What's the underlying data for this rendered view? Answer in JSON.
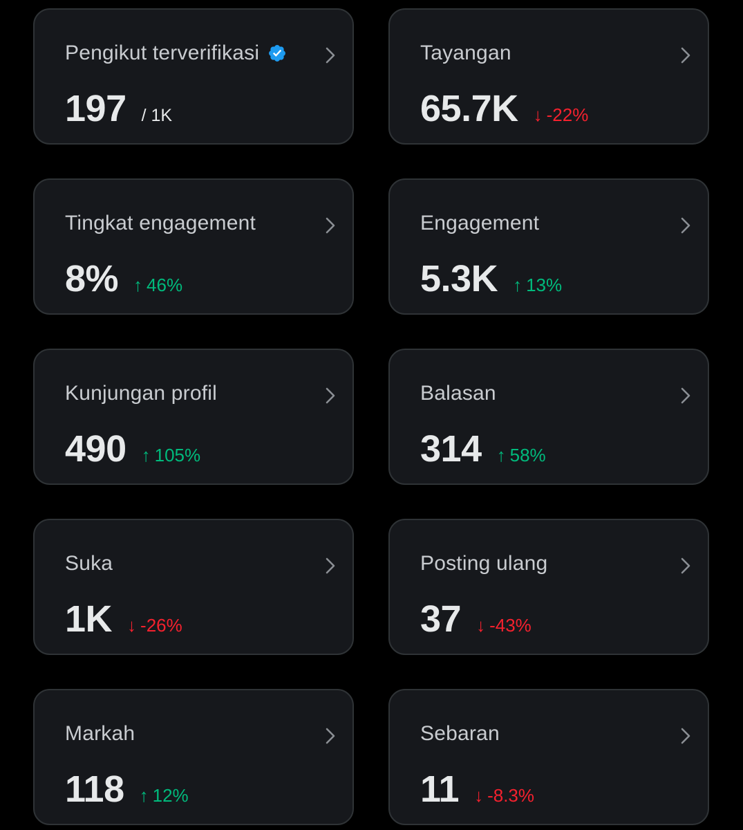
{
  "colors": {
    "background": "#000000",
    "card": "#16181c",
    "border": "#2f3336",
    "up": "#00ba7c",
    "down": "#f4212e",
    "verified": "#1d9bf0"
  },
  "cards": [
    {
      "title": "Pengikut terverifikasi",
      "value": "197",
      "suffix": "/ 1K",
      "verified_icon": "verified-badge-icon"
    },
    {
      "title": "Tayangan",
      "value": "65.7K",
      "change": {
        "arrow": "↓",
        "text": "-22%",
        "direction": "down"
      }
    },
    {
      "title": "Tingkat engagement",
      "value": "8%",
      "change": {
        "arrow": "↑",
        "text": "46%",
        "direction": "up"
      }
    },
    {
      "title": "Engagement",
      "value": "5.3K",
      "change": {
        "arrow": "↑",
        "text": "13%",
        "direction": "up"
      }
    },
    {
      "title": "Kunjungan profil",
      "value": "490",
      "change": {
        "arrow": "↑",
        "text": "105%",
        "direction": "up"
      }
    },
    {
      "title": "Balasan",
      "value": "314",
      "change": {
        "arrow": "↑",
        "text": "58%",
        "direction": "up"
      }
    },
    {
      "title": "Suka",
      "value": "1K",
      "change": {
        "arrow": "↓",
        "text": "-26%",
        "direction": "down"
      }
    },
    {
      "title": "Posting ulang",
      "value": "37",
      "change": {
        "arrow": "↓",
        "text": "-43%",
        "direction": "down"
      }
    },
    {
      "title": "Markah",
      "value": "118",
      "change": {
        "arrow": "↑",
        "text": "12%",
        "direction": "up"
      }
    },
    {
      "title": "Sebaran",
      "value": "11",
      "change": {
        "arrow": "↓",
        "text": "-8.3%",
        "direction": "down"
      }
    }
  ]
}
